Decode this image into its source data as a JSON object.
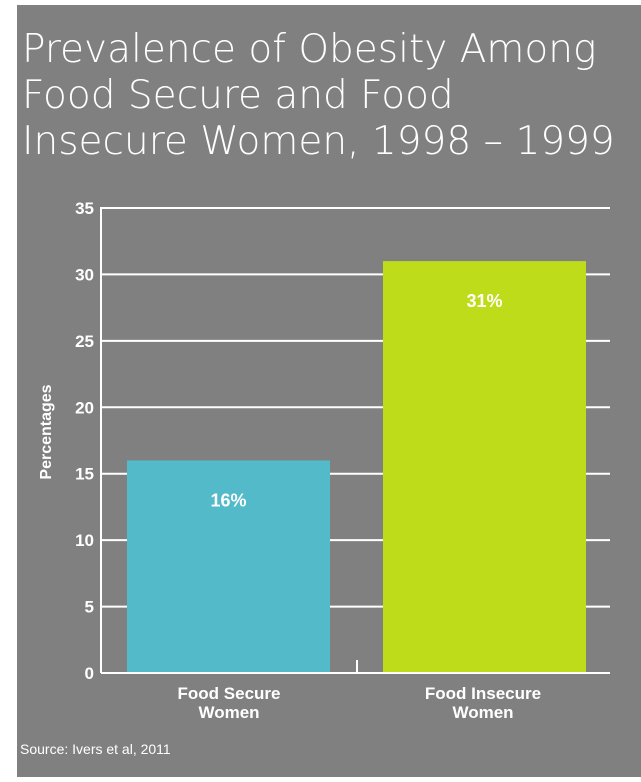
{
  "chart_data": {
    "type": "bar",
    "title": "Prevalence of Obesity Among Food Secure and Food Insecure Women, 1998 – 1999",
    "ylabel": "Percentages",
    "xlabel": "",
    "categories": [
      "Food Secure\nWomen",
      "Food Insecure\nWomen"
    ],
    "values": [
      16,
      31
    ],
    "data_labels": [
      "16%",
      "31%"
    ],
    "ylim": [
      0,
      35
    ],
    "yticks": [
      0,
      5,
      10,
      15,
      20,
      25,
      30,
      35
    ],
    "grid": true,
    "legend": "none",
    "bar_colors": [
      "#52BAC9",
      "#BFDC1B"
    ],
    "source": "Source: Ivers et al, 2011"
  },
  "colors": {
    "panel_background": "#808080",
    "text": "#FFFFFF",
    "axis": "#FFFFFF"
  }
}
